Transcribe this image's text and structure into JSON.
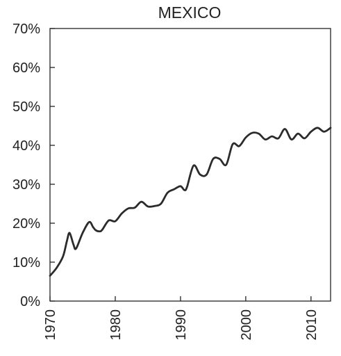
{
  "chart_data": {
    "type": "line",
    "title": "MEXICO",
    "xlabel": "",
    "ylabel": "",
    "xlim": [
      1970,
      2013
    ],
    "ylim": [
      0,
      70
    ],
    "x_ticks": [
      1970,
      1980,
      1990,
      2000,
      2010
    ],
    "x_tick_labels": [
      "1970",
      "1980",
      "1990",
      "2000",
      "2010"
    ],
    "y_ticks": [
      0,
      10,
      20,
      30,
      40,
      50,
      60,
      70
    ],
    "y_tick_labels": [
      "0%",
      "10%",
      "20%",
      "30%",
      "40%",
      "50%",
      "60%",
      "70%"
    ],
    "grid": false,
    "legend": "none",
    "series": [
      {
        "color": "#2b2b2b",
        "x": [
          1970,
          1971,
          1972,
          1972.6,
          1973,
          1973.6,
          1974,
          1975,
          1976,
          1976.6,
          1977,
          1977.6,
          1978,
          1979,
          1980,
          1981,
          1982,
          1983,
          1984,
          1985,
          1986,
          1987,
          1988,
          1989,
          1990,
          1990.6,
          1991,
          1992,
          1993,
          1994,
          1995,
          1996,
          1997,
          1998,
          1999,
          2000,
          2001,
          2002,
          2003,
          2004,
          2005,
          2006,
          2007,
          2008,
          2009,
          2010,
          2011,
          2012,
          2013
        ],
        "values": [
          6.5,
          8.5,
          11.5,
          15.5,
          17.5,
          14.5,
          13.5,
          17.5,
          20.3,
          19.0,
          18.2,
          17.9,
          18.3,
          20.7,
          20.5,
          22.5,
          23.8,
          24.0,
          25.5,
          24.3,
          24.4,
          25.0,
          27.8,
          28.7,
          29.5,
          28.5,
          29.3,
          34.8,
          32.5,
          32.5,
          36.5,
          36.5,
          35.0,
          40.3,
          39.8,
          42.0,
          43.2,
          43.0,
          41.5,
          42.3,
          41.8,
          44.2,
          41.5,
          43.0,
          41.8,
          43.5,
          44.5,
          43.5,
          44.5
        ]
      }
    ]
  }
}
